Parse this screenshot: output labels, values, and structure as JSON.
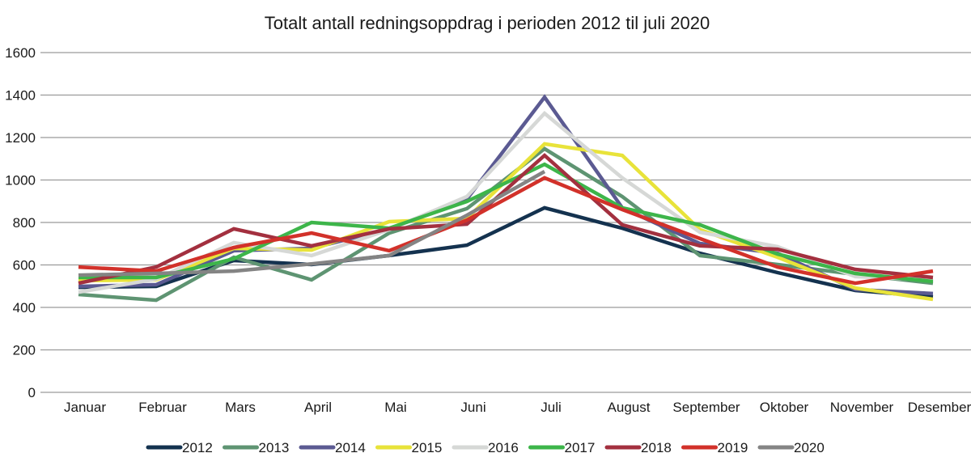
{
  "chart_data": {
    "type": "line",
    "title": "Totalt antall redningsoppdrag i perioden 2012 til juli 2020",
    "xlabel": "",
    "ylabel": "",
    "ylim": [
      0,
      1600
    ],
    "yticks": [
      0,
      200,
      400,
      600,
      800,
      1000,
      1200,
      1400,
      1600
    ],
    "ytick_labels": [
      "0",
      "200",
      "400",
      "600",
      "800",
      "1000",
      "1200",
      "1400",
      "1600"
    ],
    "grid": true,
    "legend_position": "bottom",
    "categories": [
      "Januar",
      "Februar",
      "Mars",
      "April",
      "Mai",
      "Juni",
      "Juli",
      "August",
      "September",
      "Oktober",
      "November",
      "Desember"
    ],
    "series": [
      {
        "name": "2012",
        "color": "#14324f",
        "values": [
          495,
          499,
          621,
          602,
          644,
          693,
          869,
          773,
          655,
          564,
          480,
          450
        ]
      },
      {
        "name": "2013",
        "color": "#5e9472",
        "values": [
          461,
          434,
          636,
          530,
          750,
          865,
          1147,
          922,
          644,
          602,
          556,
          514
        ]
      },
      {
        "name": "2014",
        "color": "#5b5a92",
        "values": [
          499,
          507,
          667,
          678,
          770,
          910,
          1390,
          869,
          701,
          655,
          484,
          465
        ]
      },
      {
        "name": "2015",
        "color": "#e8e33a",
        "values": [
          526,
          530,
          678,
          670,
          804,
          819,
          1170,
          1116,
          766,
          636,
          491,
          438
        ]
      },
      {
        "name": "2016",
        "color": "#d6d8d6",
        "values": [
          472,
          533,
          705,
          644,
          766,
          922,
          1314,
          1010,
          754,
          686,
          545,
          530
        ]
      },
      {
        "name": "2017",
        "color": "#3db54a",
        "values": [
          541,
          541,
          629,
          800,
          773,
          899,
          1074,
          869,
          789,
          651,
          560,
          522
        ]
      },
      {
        "name": "2018",
        "color": "#a3303f",
        "values": [
          514,
          590,
          770,
          690,
          770,
          792,
          1116,
          789,
          690,
          674,
          579,
          541
        ]
      },
      {
        "name": "2019",
        "color": "#d2312a",
        "values": [
          590,
          571,
          682,
          750,
          667,
          811,
          1010,
          861,
          724,
          590,
          514,
          571
        ]
      },
      {
        "name": "2020",
        "color": "#848484",
        "values": [
          552,
          560,
          571,
          605,
          644,
          834,
          1040,
          null,
          null,
          null,
          null,
          null
        ]
      }
    ]
  }
}
